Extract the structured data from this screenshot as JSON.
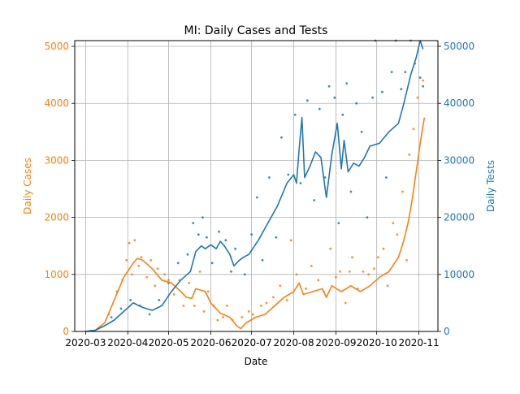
{
  "chart_data": {
    "type": "line",
    "title": "MI: Daily Cases and Tests",
    "xlabel": "Date",
    "ylabel_left": "Daily Cases",
    "ylabel_right": "Daily Tests",
    "x_type": "date",
    "xlim": [
      "2020-02-22",
      "2020-11-15"
    ],
    "ylim_left": [
      0,
      5100
    ],
    "ylim_right": [
      0,
      51000
    ],
    "grid": true,
    "x_ticks": [
      "2020-03",
      "2020-04",
      "2020-05",
      "2020-06",
      "2020-07",
      "2020-08",
      "2020-09",
      "2020-10",
      "2020-11"
    ],
    "y_ticks_left": [
      "0",
      "1000",
      "2000",
      "3000",
      "4000",
      "5000"
    ],
    "y_ticks_right": [
      "0",
      "10000",
      "20000",
      "30000",
      "40000",
      "50000"
    ],
    "colors": {
      "cases": "#ff7f0e",
      "tests": "#1f77b4"
    },
    "series": [
      {
        "axis": "left",
        "style": "line",
        "color": "#ff7f0e",
        "points": [
          [
            "2020-03-01",
            0
          ],
          [
            "2020-03-08",
            20
          ],
          [
            "2020-03-15",
            150
          ],
          [
            "2020-03-22",
            550
          ],
          [
            "2020-03-29",
            950
          ],
          [
            "2020-04-05",
            1200
          ],
          [
            "2020-04-08",
            1280
          ],
          [
            "2020-04-12",
            1250
          ],
          [
            "2020-04-19",
            1100
          ],
          [
            "2020-04-26",
            900
          ],
          [
            "2020-05-03",
            850
          ],
          [
            "2020-05-10",
            700
          ],
          [
            "2020-05-14",
            600
          ],
          [
            "2020-05-18",
            580
          ],
          [
            "2020-05-21",
            750
          ],
          [
            "2020-05-28",
            700
          ],
          [
            "2020-06-01",
            500
          ],
          [
            "2020-06-08",
            320
          ],
          [
            "2020-06-15",
            250
          ],
          [
            "2020-06-20",
            100
          ],
          [
            "2020-06-23",
            50
          ],
          [
            "2020-06-27",
            150
          ],
          [
            "2020-07-04",
            250
          ],
          [
            "2020-07-11",
            300
          ],
          [
            "2020-07-18",
            450
          ],
          [
            "2020-07-25",
            600
          ],
          [
            "2020-08-01",
            700
          ],
          [
            "2020-08-05",
            850
          ],
          [
            "2020-08-08",
            650
          ],
          [
            "2020-08-15",
            700
          ],
          [
            "2020-08-22",
            750
          ],
          [
            "2020-08-25",
            600
          ],
          [
            "2020-08-29",
            800
          ],
          [
            "2020-09-05",
            700
          ],
          [
            "2020-09-12",
            800
          ],
          [
            "2020-09-19",
            700
          ],
          [
            "2020-09-26",
            800
          ],
          [
            "2020-10-03",
            950
          ],
          [
            "2020-10-10",
            1050
          ],
          [
            "2020-10-17",
            1300
          ],
          [
            "2020-10-21",
            1600
          ],
          [
            "2020-10-24",
            1900
          ],
          [
            "2020-10-27",
            2300
          ],
          [
            "2020-10-30",
            2800
          ],
          [
            "2020-11-02",
            3300
          ],
          [
            "2020-11-05",
            3750
          ]
        ]
      },
      {
        "axis": "right",
        "style": "line",
        "color": "#1f77b4",
        "points": [
          [
            "2020-03-01",
            0
          ],
          [
            "2020-03-08",
            200
          ],
          [
            "2020-03-15",
            1000
          ],
          [
            "2020-03-22",
            2000
          ],
          [
            "2020-03-29",
            3500
          ],
          [
            "2020-04-05",
            5000
          ],
          [
            "2020-04-12",
            4200
          ],
          [
            "2020-04-19",
            3700
          ],
          [
            "2020-04-26",
            4500
          ],
          [
            "2020-05-03",
            7000
          ],
          [
            "2020-05-10",
            9000
          ],
          [
            "2020-05-17",
            10500
          ],
          [
            "2020-05-21",
            14000
          ],
          [
            "2020-05-25",
            15000
          ],
          [
            "2020-05-28",
            14500
          ],
          [
            "2020-06-01",
            15200
          ],
          [
            "2020-06-05",
            14500
          ],
          [
            "2020-06-08",
            15800
          ],
          [
            "2020-06-11",
            15000
          ],
          [
            "2020-06-15",
            13500
          ],
          [
            "2020-06-18",
            11500
          ],
          [
            "2020-06-22",
            12500
          ],
          [
            "2020-06-25",
            13000
          ],
          [
            "2020-06-29",
            13500
          ],
          [
            "2020-07-06",
            16000
          ],
          [
            "2020-07-13",
            19000
          ],
          [
            "2020-07-20",
            22000
          ],
          [
            "2020-07-27",
            26000
          ],
          [
            "2020-08-01",
            27500
          ],
          [
            "2020-08-03",
            26000
          ],
          [
            "2020-08-05",
            32000
          ],
          [
            "2020-08-07",
            37500
          ],
          [
            "2020-08-09",
            27000
          ],
          [
            "2020-08-13",
            29000
          ],
          [
            "2020-08-17",
            31500
          ],
          [
            "2020-08-21",
            30500
          ],
          [
            "2020-08-25",
            23500
          ],
          [
            "2020-08-29",
            31000
          ],
          [
            "2020-09-02",
            36500
          ],
          [
            "2020-09-05",
            28500
          ],
          [
            "2020-09-07",
            33500
          ],
          [
            "2020-09-10",
            28000
          ],
          [
            "2020-09-14",
            29500
          ],
          [
            "2020-09-18",
            29000
          ],
          [
            "2020-09-22",
            30500
          ],
          [
            "2020-09-26",
            32500
          ],
          [
            "2020-10-03",
            33000
          ],
          [
            "2020-10-10",
            35000
          ],
          [
            "2020-10-17",
            36500
          ],
          [
            "2020-10-21",
            40000
          ],
          [
            "2020-10-26",
            45000
          ],
          [
            "2020-10-30",
            48000
          ],
          [
            "2020-11-02",
            51000
          ],
          [
            "2020-11-04",
            49500
          ]
        ]
      },
      {
        "axis": "left",
        "style": "scatter",
        "color": "#ff7f0e",
        "points": [
          [
            "2020-03-05",
            10
          ],
          [
            "2020-03-12",
            80
          ],
          [
            "2020-03-18",
            300
          ],
          [
            "2020-03-24",
            700
          ],
          [
            "2020-03-28",
            900
          ],
          [
            "2020-03-31",
            1250
          ],
          [
            "2020-04-02",
            1550
          ],
          [
            "2020-04-04",
            1000
          ],
          [
            "2020-04-06",
            1600
          ],
          [
            "2020-04-09",
            1150
          ],
          [
            "2020-04-11",
            1300
          ],
          [
            "2020-04-15",
            950
          ],
          [
            "2020-04-18",
            1250
          ],
          [
            "2020-04-21",
            800
          ],
          [
            "2020-04-23",
            1100
          ],
          [
            "2020-04-28",
            1000
          ],
          [
            "2020-05-01",
            900
          ],
          [
            "2020-05-05",
            650
          ],
          [
            "2020-05-09",
            900
          ],
          [
            "2020-05-12",
            450
          ],
          [
            "2020-05-16",
            850
          ],
          [
            "2020-05-20",
            450
          ],
          [
            "2020-05-24",
            1050
          ],
          [
            "2020-05-27",
            350
          ],
          [
            "2020-05-30",
            700
          ],
          [
            "2020-06-03",
            450
          ],
          [
            "2020-06-06",
            200
          ],
          [
            "2020-06-10",
            250
          ],
          [
            "2020-06-13",
            450
          ],
          [
            "2020-06-17",
            200
          ],
          [
            "2020-06-24",
            250
          ],
          [
            "2020-06-29",
            350
          ],
          [
            "2020-07-02",
            300
          ],
          [
            "2020-07-08",
            450
          ],
          [
            "2020-07-12",
            500
          ],
          [
            "2020-07-17",
            600
          ],
          [
            "2020-07-22",
            800
          ],
          [
            "2020-07-27",
            550
          ],
          [
            "2020-07-30",
            1600
          ],
          [
            "2020-08-03",
            1000
          ],
          [
            "2020-08-10",
            750
          ],
          [
            "2020-08-14",
            1150
          ],
          [
            "2020-08-19",
            900
          ],
          [
            "2020-08-23",
            700
          ],
          [
            "2020-08-28",
            1450
          ],
          [
            "2020-09-01",
            950
          ],
          [
            "2020-09-04",
            1050
          ],
          [
            "2020-09-08",
            500
          ],
          [
            "2020-09-11",
            1050
          ],
          [
            "2020-09-13",
            1300
          ],
          [
            "2020-09-17",
            750
          ],
          [
            "2020-09-21",
            1050
          ],
          [
            "2020-09-25",
            1000
          ],
          [
            "2020-09-29",
            1100
          ],
          [
            "2020-10-02",
            1300
          ],
          [
            "2020-10-06",
            1450
          ],
          [
            "2020-10-09",
            800
          ],
          [
            "2020-10-13",
            1900
          ],
          [
            "2020-10-16",
            1700
          ],
          [
            "2020-10-20",
            2450
          ],
          [
            "2020-10-23",
            1250
          ],
          [
            "2020-10-25",
            3100
          ],
          [
            "2020-10-28",
            3550
          ],
          [
            "2020-10-31",
            4100
          ],
          [
            "2020-11-04",
            4400
          ]
        ]
      },
      {
        "axis": "right",
        "style": "scatter",
        "color": "#1f77b4",
        "points": [
          [
            "2020-03-10",
            500
          ],
          [
            "2020-03-20",
            2500
          ],
          [
            "2020-03-27",
            4000
          ],
          [
            "2020-04-03",
            5500
          ],
          [
            "2020-04-10",
            4500
          ],
          [
            "2020-04-17",
            3000
          ],
          [
            "2020-04-24",
            5500
          ],
          [
            "2020-05-01",
            8500
          ],
          [
            "2020-05-08",
            12000
          ],
          [
            "2020-05-15",
            13500
          ],
          [
            "2020-05-19",
            19000
          ],
          [
            "2020-05-23",
            17000
          ],
          [
            "2020-05-26",
            20000
          ],
          [
            "2020-05-29",
            16500
          ],
          [
            "2020-06-02",
            12000
          ],
          [
            "2020-06-07",
            17500
          ],
          [
            "2020-06-12",
            16000
          ],
          [
            "2020-06-16",
            10500
          ],
          [
            "2020-06-19",
            14500
          ],
          [
            "2020-06-26",
            10000
          ],
          [
            "2020-07-01",
            17000
          ],
          [
            "2020-07-05",
            23500
          ],
          [
            "2020-07-09",
            12500
          ],
          [
            "2020-07-14",
            27000
          ],
          [
            "2020-07-19",
            16500
          ],
          [
            "2020-07-23",
            34000
          ],
          [
            "2020-07-28",
            27500
          ],
          [
            "2020-08-02",
            38000
          ],
          [
            "2020-08-06",
            26000
          ],
          [
            "2020-08-11",
            40500
          ],
          [
            "2020-08-16",
            23000
          ],
          [
            "2020-08-20",
            39000
          ],
          [
            "2020-08-24",
            27000
          ],
          [
            "2020-08-27",
            43000
          ],
          [
            "2020-08-31",
            41000
          ],
          [
            "2020-09-03",
            19000
          ],
          [
            "2020-09-06",
            38000
          ],
          [
            "2020-09-09",
            43500
          ],
          [
            "2020-09-12",
            24500
          ],
          [
            "2020-09-16",
            40000
          ],
          [
            "2020-09-20",
            35000
          ],
          [
            "2020-09-24",
            20000
          ],
          [
            "2020-09-28",
            41000
          ],
          [
            "2020-09-30",
            51000
          ],
          [
            "2020-10-05",
            42000
          ],
          [
            "2020-10-08",
            27000
          ],
          [
            "2020-10-12",
            45500
          ],
          [
            "2020-10-15",
            51000
          ],
          [
            "2020-10-19",
            42500
          ],
          [
            "2020-10-22",
            45500
          ],
          [
            "2020-10-26",
            51000
          ],
          [
            "2020-10-29",
            47000
          ],
          [
            "2020-11-02",
            44500
          ],
          [
            "2020-11-04",
            43000
          ]
        ]
      }
    ]
  }
}
